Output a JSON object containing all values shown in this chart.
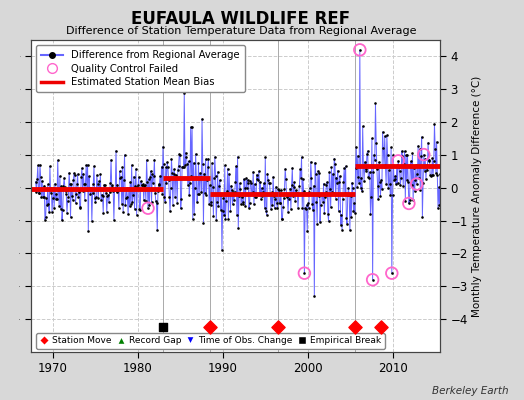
{
  "title": "EUFAULA WILDLIFE REF",
  "subtitle": "Difference of Station Temperature Data from Regional Average",
  "ylabel_right": "Monthly Temperature Anomaly Difference (°C)",
  "xlim": [
    1967.5,
    2015.5
  ],
  "ylim": [
    -5,
    4.5
  ],
  "yticks": [
    -4,
    -3,
    -2,
    -1,
    0,
    1,
    2,
    3,
    4
  ],
  "xticks": [
    1970,
    1980,
    1990,
    2000,
    2010
  ],
  "fig_bg_color": "#d8d8d8",
  "plot_bg_color": "#ffffff",
  "grid_color": "#cccccc",
  "line_color": "#6666ff",
  "dot_color": "#000000",
  "bias_color": "#ee0000",
  "qc_color": "#ff66cc",
  "watermark": "Berkeley Earth",
  "station_moves": [
    1988.5,
    1996.5,
    2005.5,
    2008.5
  ],
  "empirical_breaks": [
    1983.0
  ],
  "vertical_lines": [
    1983.0,
    1988.5,
    1996.5,
    2005.5
  ],
  "bias_segments": [
    {
      "x": [
        1967.5,
        1983.0
      ],
      "y": [
        -0.05,
        -0.05
      ]
    },
    {
      "x": [
        1983.0,
        1988.5
      ],
      "y": [
        0.3,
        0.3
      ]
    },
    {
      "x": [
        1988.5,
        1996.5
      ],
      "y": [
        -0.18,
        -0.18
      ]
    },
    {
      "x": [
        1996.5,
        2005.5
      ],
      "y": [
        -0.2,
        -0.2
      ]
    },
    {
      "x": [
        2005.5,
        2015.5
      ],
      "y": [
        0.65,
        0.65
      ]
    }
  ],
  "seed": 42,
  "t_start": 1968.0,
  "t_end": 2015.5,
  "marker_y": -4.25
}
